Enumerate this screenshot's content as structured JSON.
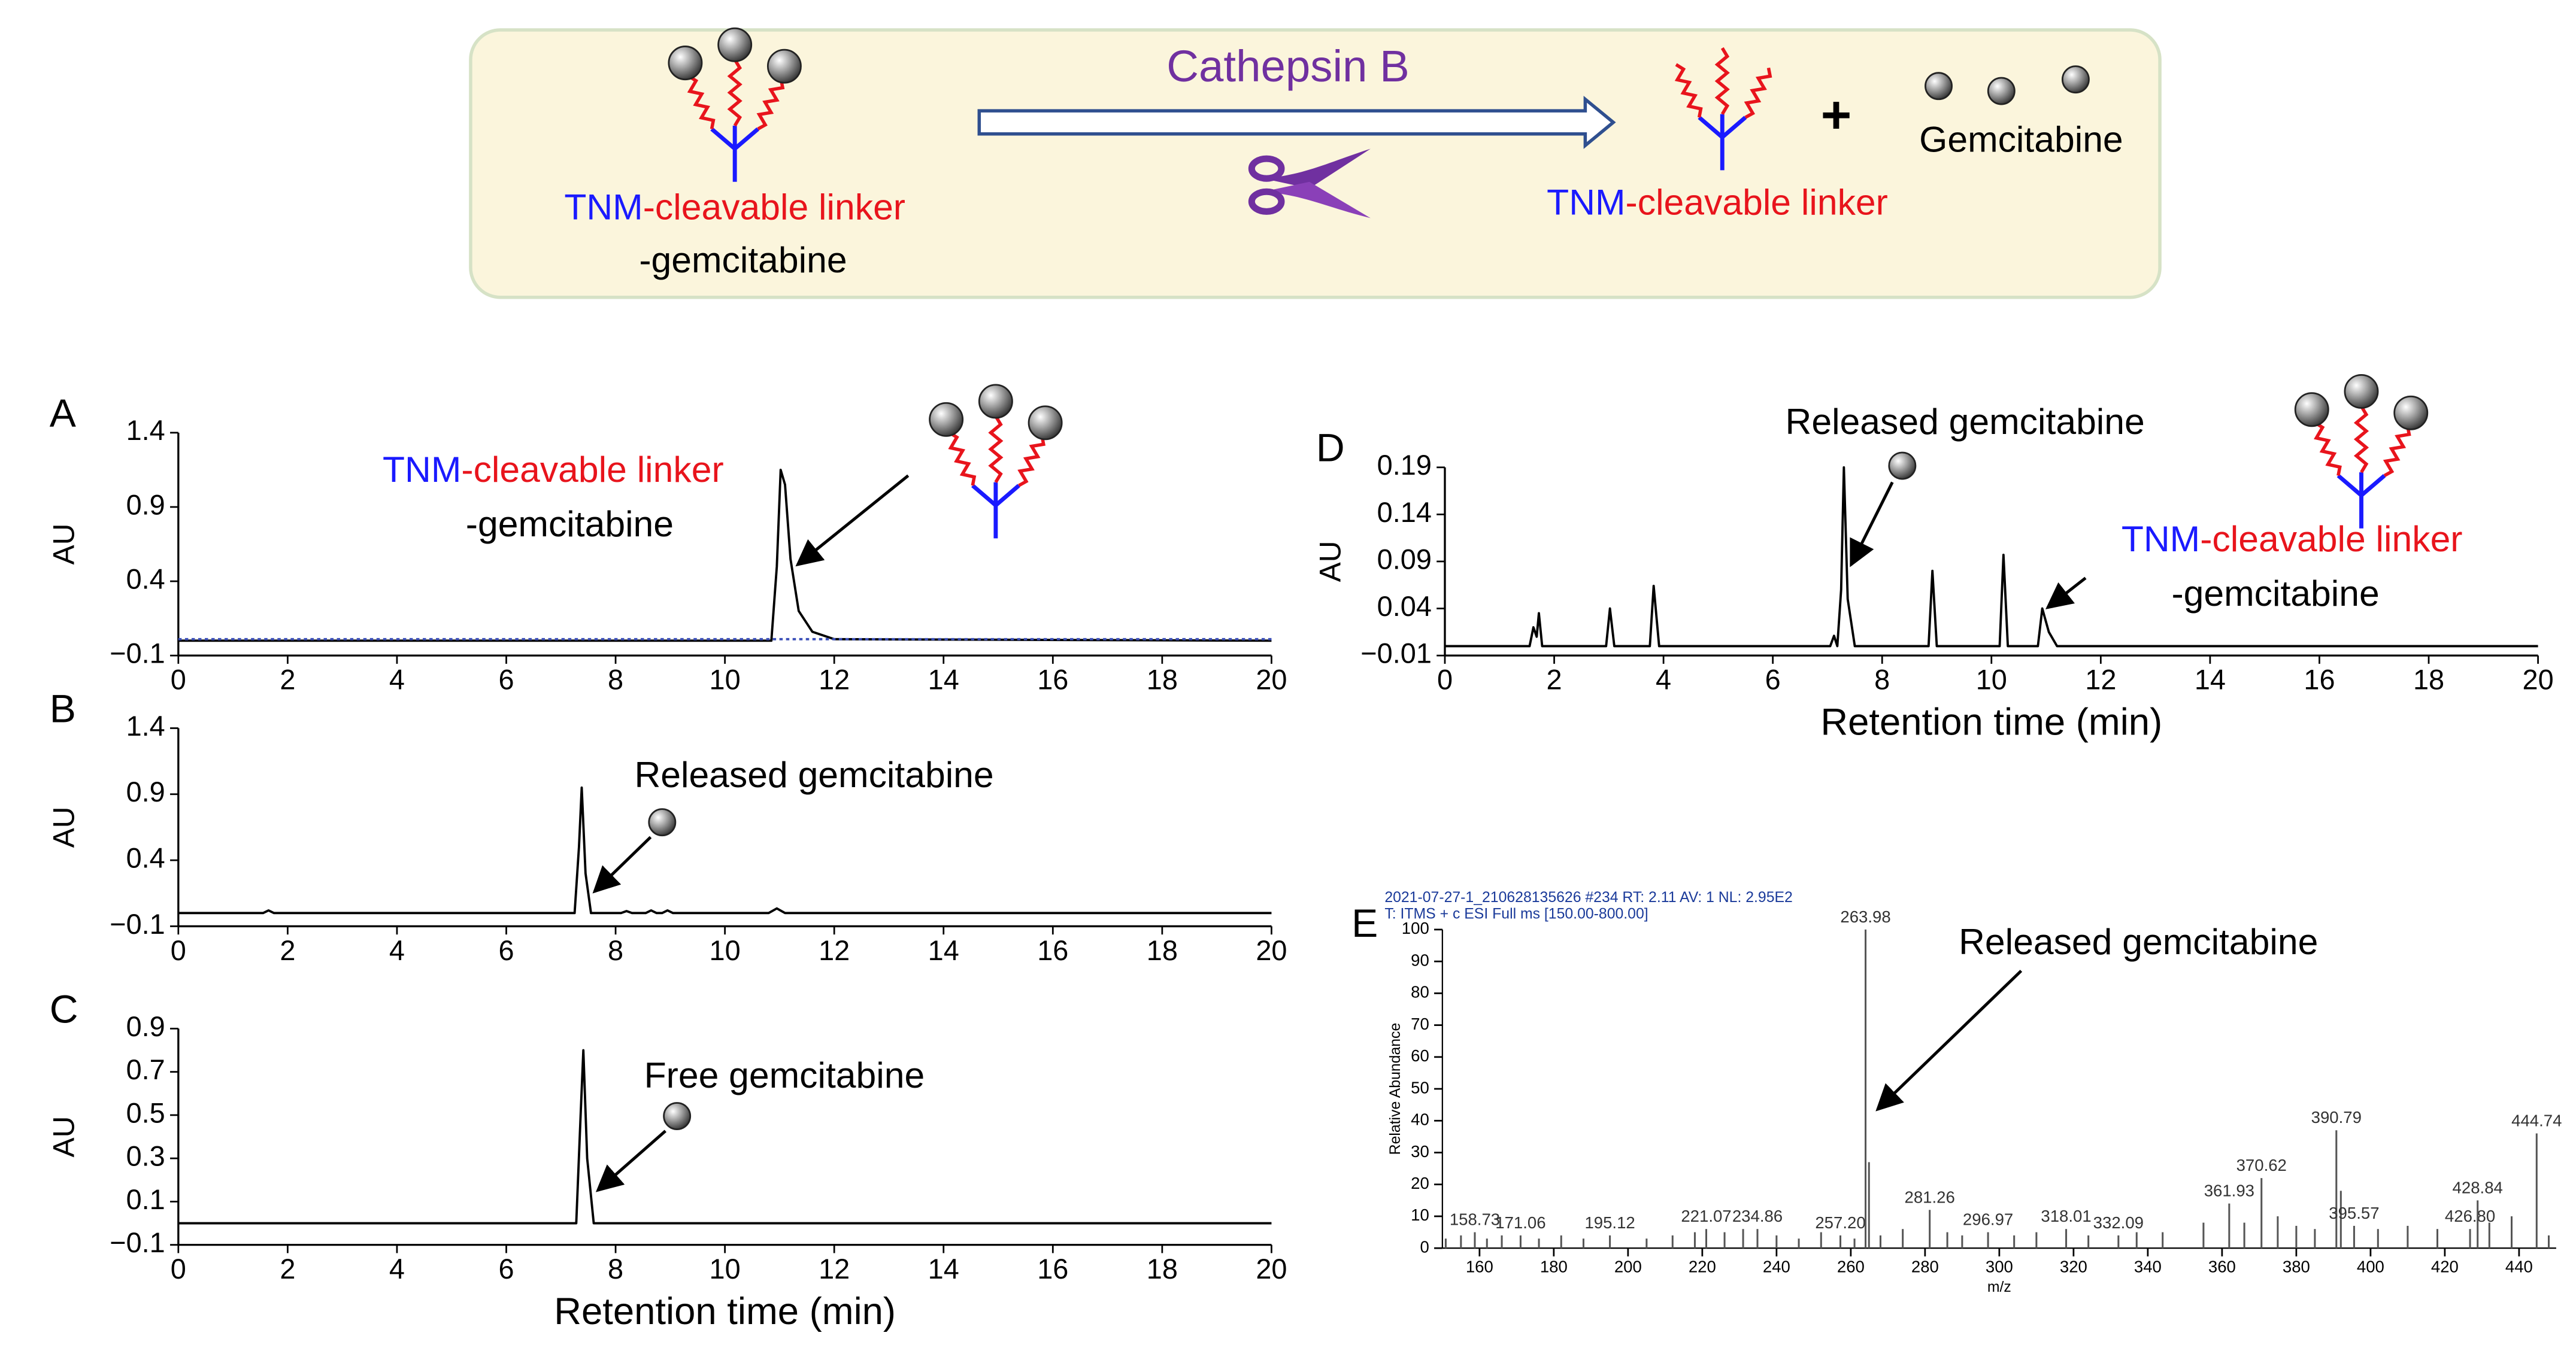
{
  "scheme": {
    "enzyme": "Cathepsin B",
    "substrate": [
      "TNM",
      "-",
      "cleavable linker",
      "-gemcitabine"
    ],
    "product": [
      "TNM",
      "-",
      "cleavable linker"
    ],
    "plus": "+",
    "released": "Gemcitabine"
  },
  "chart_data": [
    {
      "type": "line",
      "label": "A",
      "ylabel": "AU",
      "annotation": [
        "TNM",
        "-",
        "cleavable linker",
        "-gemcitabine"
      ],
      "xlim": [
        0,
        20
      ],
      "xticks": [
        0,
        2,
        4,
        6,
        8,
        10,
        12,
        14,
        16,
        18,
        20
      ],
      "ylim": [
        -0.1,
        1.4
      ],
      "yticks": [
        {
          "value": -0.1,
          "label": "−0.1"
        },
        0.4,
        0.9,
        1.4
      ],
      "series": [
        {
          "color": "#000000",
          "x": [
            0,
            10.85,
            10.95,
            11.02,
            11.1,
            11.2,
            11.35,
            11.6,
            12,
            20
          ],
          "values": [
            0,
            0,
            0.5,
            1.15,
            1.05,
            0.55,
            0.2,
            0.06,
            0.01,
            0
          ]
        },
        {
          "color": "#3b4fb8",
          "dash": "dotted",
          "x": [
            0,
            20
          ],
          "values": [
            0.01,
            0.01
          ]
        }
      ]
    },
    {
      "type": "line",
      "label": "B",
      "ylabel": "AU",
      "annotation": "Released gemcitabine",
      "xlim": [
        0,
        20
      ],
      "xticks": [
        0,
        2,
        4,
        6,
        8,
        10,
        12,
        14,
        16,
        18,
        20
      ],
      "ylim": [
        -0.1,
        1.4
      ],
      "yticks": [
        {
          "value": -0.1,
          "label": "−0.1"
        },
        0.4,
        0.9,
        1.4
      ],
      "series": [
        {
          "color": "#000000",
          "x": [
            0,
            1.55,
            1.65,
            1.75,
            7.25,
            7.33,
            7.38,
            7.45,
            7.55,
            8.1,
            8.2,
            8.3,
            8.55,
            8.65,
            8.75,
            8.85,
            8.95,
            9.05,
            10.8,
            10.95,
            11.1,
            20
          ],
          "values": [
            0,
            0,
            0.02,
            0,
            0,
            0.5,
            0.95,
            0.3,
            0,
            0,
            0.015,
            0,
            0,
            0.02,
            0,
            0,
            0.02,
            0,
            0,
            0.035,
            0,
            0
          ]
        }
      ]
    },
    {
      "type": "line",
      "label": "C",
      "ylabel": "AU",
      "xlabel": "Retention time (min)",
      "annotation": "Free gemcitabine",
      "xlim": [
        0,
        20
      ],
      "xticks": [
        0,
        2,
        4,
        6,
        8,
        10,
        12,
        14,
        16,
        18,
        20
      ],
      "ylim": [
        -0.1,
        0.9
      ],
      "yticks": [
        {
          "value": -0.1,
          "label": "−0.1"
        },
        0.1,
        0.3,
        0.5,
        0.7,
        0.9
      ],
      "series": [
        {
          "color": "#000000",
          "x": [
            0,
            7.28,
            7.36,
            7.41,
            7.48,
            7.6,
            20
          ],
          "values": [
            0,
            0,
            0.5,
            0.8,
            0.3,
            0,
            0
          ]
        }
      ]
    },
    {
      "type": "line",
      "label": "D",
      "ylabel": "AU",
      "xlabel": "Retention time (min)",
      "annotations": {
        "peak": "Released gemcitabine",
        "conjugate": [
          "TNM",
          "-",
          "cleavable linker",
          "-gemcitabine"
        ]
      },
      "xlim": [
        0,
        20
      ],
      "xticks": [
        0,
        2,
        4,
        6,
        8,
        10,
        12,
        14,
        16,
        18,
        20
      ],
      "ylim": [
        -0.01,
        0.19
      ],
      "yticks": [
        {
          "value": -0.01,
          "label": "−0.01"
        },
        0.04,
        0.09,
        0.14,
        0.19
      ],
      "series": [
        {
          "color": "#000000",
          "x": [
            0,
            1.55,
            1.62,
            1.68,
            1.72,
            1.78,
            2.95,
            3.02,
            3.1,
            3.75,
            3.82,
            3.92,
            7.05,
            7.12,
            7.18,
            7.25,
            7.3,
            7.37,
            7.5,
            8.85,
            8.92,
            9.0,
            10.15,
            10.22,
            10.3,
            10.85,
            10.93,
            11.05,
            11.2,
            20
          ],
          "values": [
            0,
            0,
            0.02,
            0.01,
            0.035,
            0,
            0,
            0.04,
            0,
            0,
            0.064,
            0,
            0,
            0.011,
            0,
            0.06,
            0.19,
            0.05,
            0,
            0,
            0.08,
            0,
            0,
            0.097,
            0,
            0,
            0.04,
            0.015,
            0,
            0
          ]
        }
      ]
    },
    {
      "type": "bar",
      "label": "E",
      "ylabel": "Relative Abundance",
      "xlabel": "m/z",
      "color": "#555555",
      "header": [
        "2021-07-27-1_210628135626 #234  RT: 2.11  AV: 1  NL: 2.95E2",
        "T: ITMS + c ESI Full ms [150.00-800.00]"
      ],
      "annotation": "Released gemcitabine",
      "xlim": [
        150,
        450
      ],
      "xticks": [
        160,
        180,
        200,
        220,
        240,
        260,
        280,
        300,
        320,
        340,
        360,
        380,
        400,
        420,
        440
      ],
      "ylim": [
        0,
        100
      ],
      "yticks": [
        0,
        10,
        20,
        30,
        40,
        50,
        60,
        70,
        80,
        90,
        100
      ],
      "x": [
        150.9,
        155,
        158.73,
        162,
        166,
        171.06,
        176,
        182,
        188,
        195.12,
        205,
        212,
        218,
        221.07,
        226,
        231,
        234.86,
        240,
        246,
        252,
        257.2,
        261,
        263.98,
        264.9,
        268,
        274,
        281.26,
        286,
        290,
        296.97,
        304,
        310,
        318.01,
        324,
        332.09,
        337,
        344,
        355,
        361.93,
        366,
        370.62,
        375,
        380,
        385,
        390.79,
        392,
        395.57,
        402,
        410,
        418,
        426.8,
        428.84,
        432,
        438,
        444.74,
        448
      ],
      "values": [
        3,
        4,
        5,
        3,
        4,
        4,
        3,
        4,
        3,
        4,
        3,
        4,
        5,
        6,
        5,
        6,
        6,
        4,
        3,
        5,
        4,
        3,
        100,
        27,
        4,
        6,
        12,
        5,
        4,
        5,
        4,
        5,
        6,
        4,
        4,
        5,
        5,
        8,
        14,
        8,
        22,
        10,
        7,
        6,
        37,
        18,
        7,
        6,
        7,
        6,
        6,
        15,
        8,
        10,
        36,
        4
      ],
      "x_labels": [
        null,
        null,
        "158.73",
        null,
        null,
        "171.06",
        null,
        null,
        null,
        "195.12",
        null,
        null,
        null,
        "221.07",
        null,
        null,
        "234.86",
        null,
        null,
        null,
        "257.20",
        null,
        "263.98",
        null,
        null,
        null,
        "281.26",
        null,
        null,
        "296.97",
        null,
        null,
        "318.01",
        null,
        "332.09",
        null,
        null,
        null,
        "361.93",
        null,
        "370.62",
        null,
        null,
        null,
        "390.79",
        null,
        "395.57",
        null,
        null,
        null,
        "426.80",
        "428.84",
        null,
        null,
        "444.74",
        null
      ]
    }
  ]
}
